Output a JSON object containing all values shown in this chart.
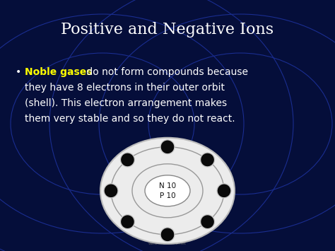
{
  "title": "Positive and Negative Ions",
  "title_color": "#ffffff",
  "title_fontsize": 16,
  "bg_color": "#050e3a",
  "bullet_highlight": "Noble gases",
  "bullet_highlight_color": "#ffff00",
  "bullet_text_color": "#ffffff",
  "bullet_fontsize": 10,
  "nucleus_label1": "N 10",
  "nucleus_label2": "P 10",
  "nucleus_label_color": "#111111",
  "num_electrons": 8,
  "electron_color": "#0a0a0a",
  "electron_edge_color": "#cccccc",
  "orbit_color": "#999999",
  "circle_bg_color": "#ececec",
  "watermark": "www.slideshare.net",
  "watermark_color": "#666666",
  "watermark_fontsize": 4,
  "text_lines": [
    " do not form compounds because",
    "they have 8 electrons in their outer orbit",
    "(shell). This electron arrangement makes",
    "them very stable and so they do not react."
  ]
}
